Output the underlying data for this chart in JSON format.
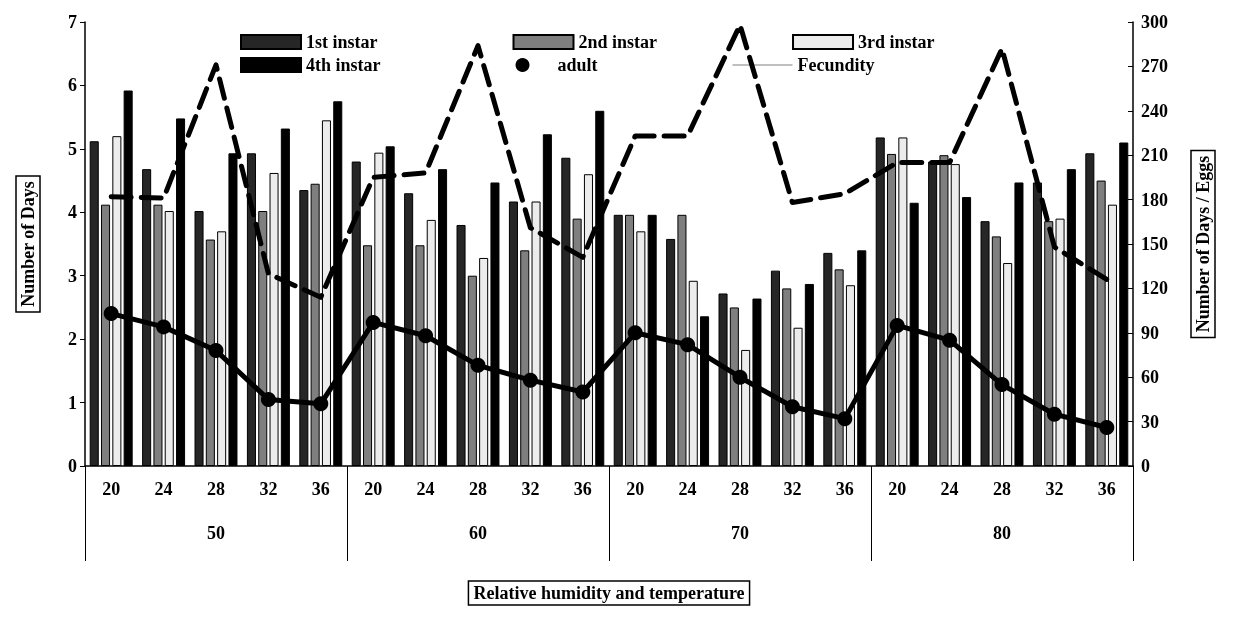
{
  "chart_data": {
    "type": "bar",
    "xlabel": "Relative humidity and temperature",
    "ylabel": "Number of Days",
    "y2label": "Number of Days / Eggs",
    "categories": [
      "20",
      "24",
      "28",
      "32",
      "36",
      "20",
      "24",
      "28",
      "32",
      "36",
      "20",
      "24",
      "28",
      "32",
      "36",
      "20",
      "24",
      "28",
      "32",
      "36"
    ],
    "annotations": [
      "50",
      "60",
      "70",
      "80"
    ],
    "ylim": [
      0,
      7
    ],
    "yticks": [
      0,
      1,
      2,
      3,
      4,
      5,
      6,
      7
    ],
    "y2lim": [
      0,
      300
    ],
    "y2ticks": [
      0,
      30,
      60,
      90,
      120,
      150,
      180,
      210,
      240,
      270,
      300
    ],
    "grid": false,
    "legend": "top",
    "series": [
      {
        "name": "1st instar",
        "color": "#262626",
        "values": [
          5.12,
          4.68,
          4.02,
          4.93,
          4.35,
          4.8,
          4.3,
          3.8,
          4.17,
          4.86,
          3.96,
          3.58,
          2.72,
          3.08,
          3.36,
          5.18,
          4.8,
          3.86,
          4.47,
          4.93
        ]
      },
      {
        "name": "2nd instar",
        "color": "#7f7f7f",
        "values": [
          4.12,
          4.12,
          3.57,
          4.02,
          4.45,
          3.48,
          3.48,
          3.0,
          3.4,
          3.9,
          3.96,
          3.96,
          2.5,
          2.8,
          3.1,
          4.92,
          4.9,
          3.62,
          3.86,
          4.5
        ]
      },
      {
        "name": "3rd instar",
        "color": "#ececec",
        "values": [
          5.2,
          4.02,
          3.7,
          4.62,
          5.45,
          4.94,
          3.88,
          3.28,
          4.17,
          4.6,
          3.7,
          2.92,
          1.83,
          2.18,
          2.85,
          5.18,
          4.76,
          3.2,
          3.9,
          4.12
        ]
      },
      {
        "name": "4th instar",
        "color": "#000000",
        "values": [
          5.92,
          5.48,
          4.93,
          5.32,
          5.75,
          5.04,
          4.68,
          4.47,
          5.23,
          5.6,
          3.96,
          2.36,
          2.64,
          2.87,
          3.4,
          4.15,
          4.24,
          4.47,
          4.68,
          5.1
        ]
      },
      {
        "name": "adult",
        "type": "line",
        "axis": "y2",
        "color": "#000000",
        "marker": "circle",
        "line_style": "solid",
        "values": [
          103,
          94,
          78,
          45,
          42,
          97,
          88,
          68,
          58,
          50,
          90,
          82,
          60,
          40,
          32,
          95,
          85,
          55,
          35,
          26
        ]
      },
      {
        "name": "Fecundity",
        "type": "line",
        "axis": "y2",
        "color": "#000000",
        "marker": "none",
        "line_style": "dashed",
        "values": [
          182,
          181,
          271,
          130,
          114,
          195,
          198,
          284,
          161,
          141,
          223,
          223,
          298,
          178,
          184,
          205,
          205,
          282,
          148,
          126
        ]
      }
    ]
  }
}
